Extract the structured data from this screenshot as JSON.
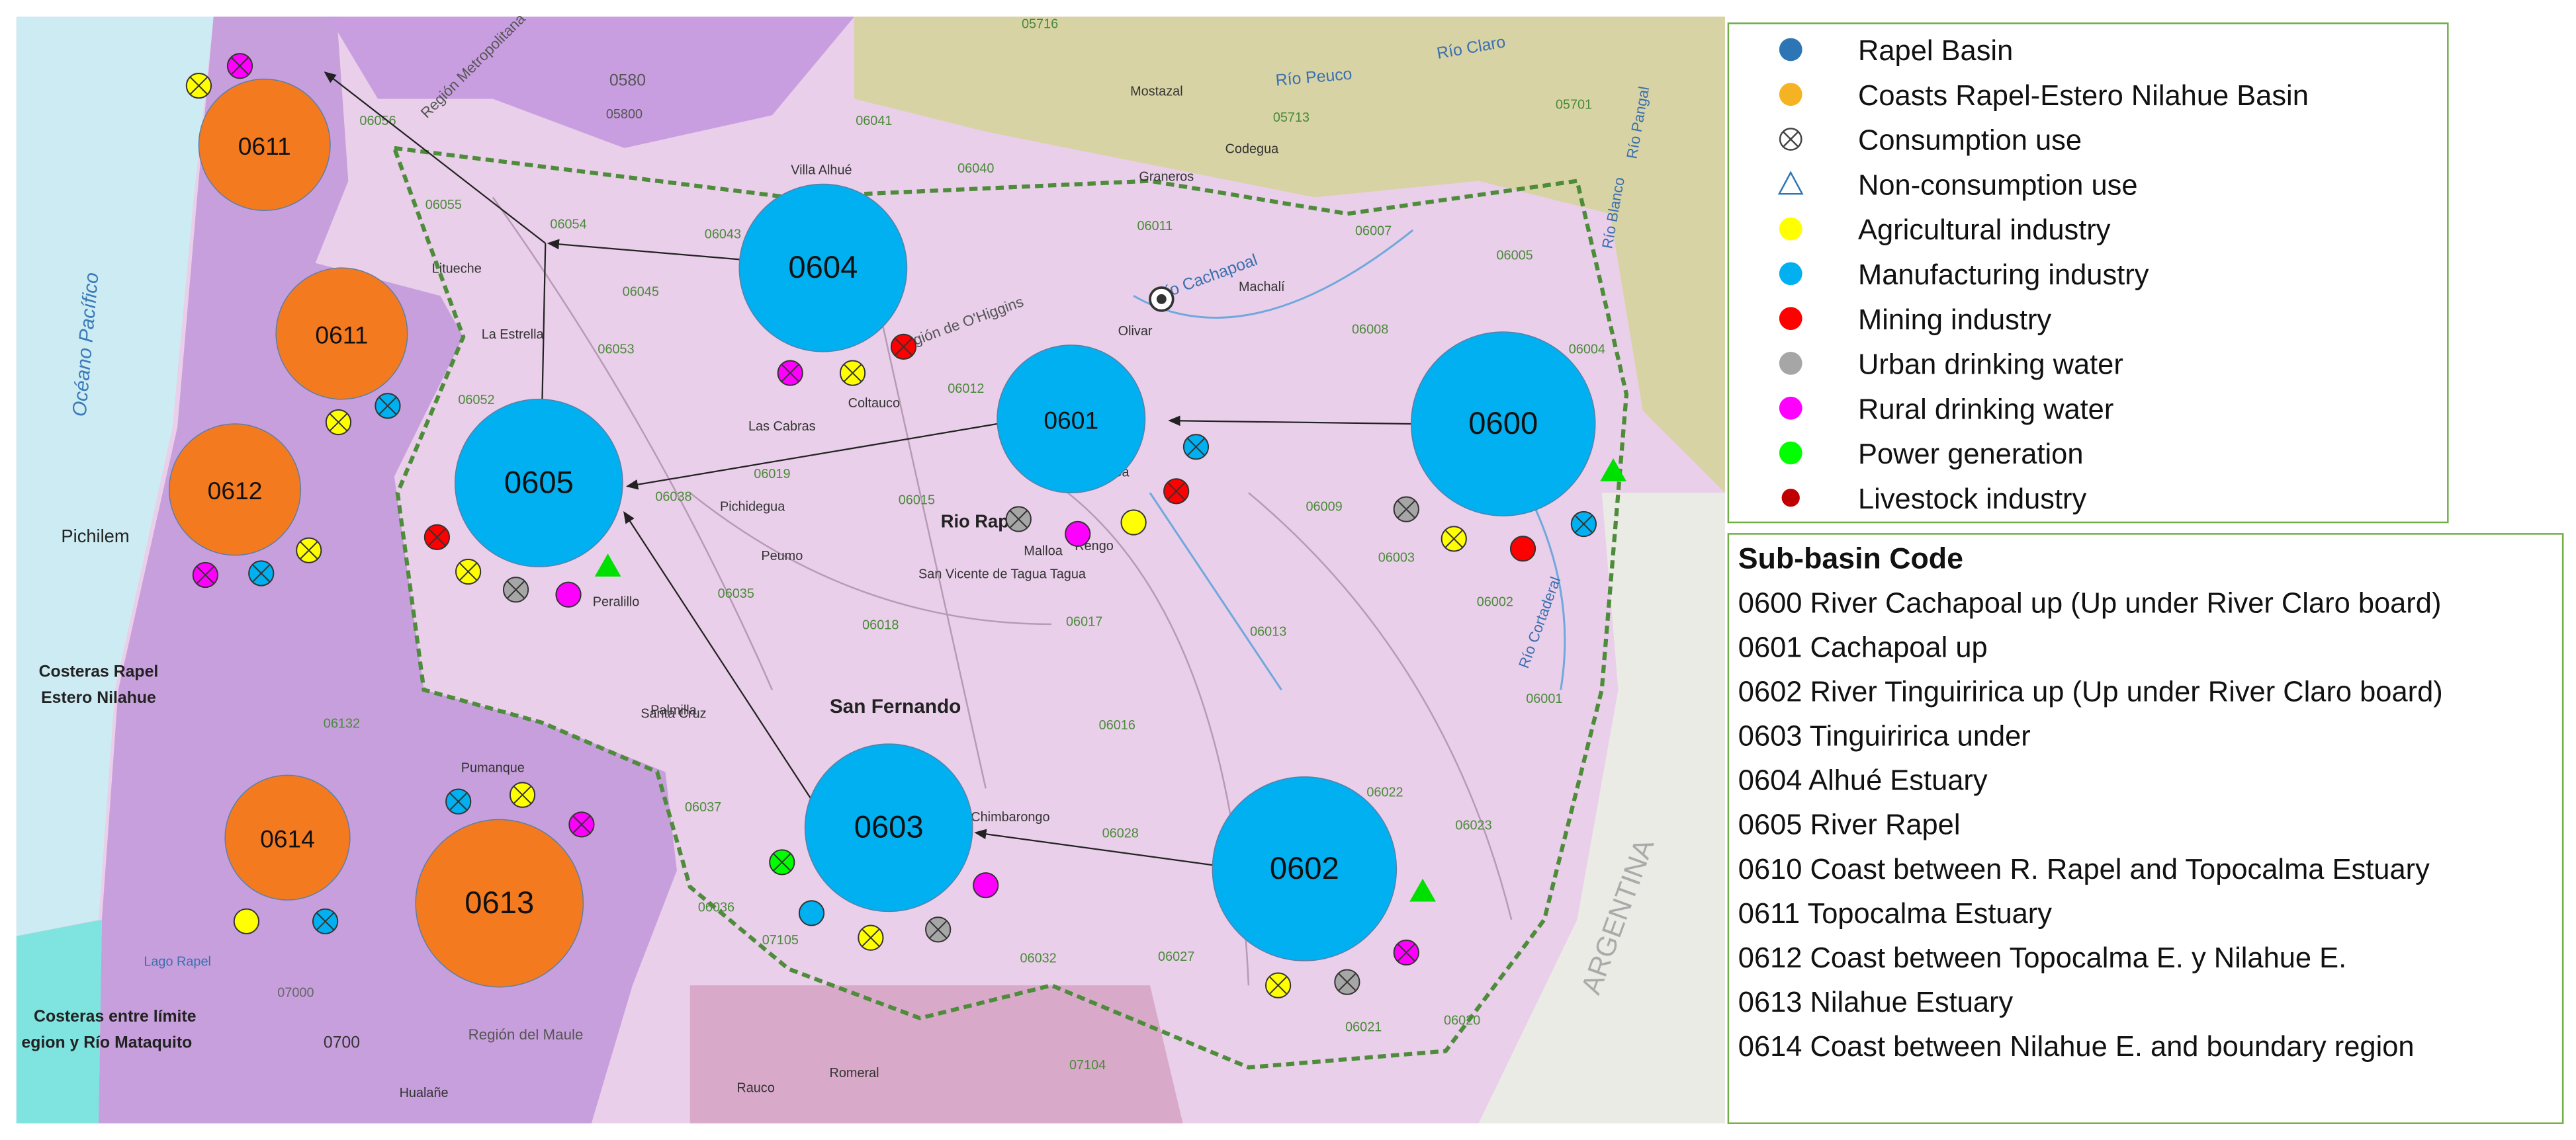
{
  "legend": {
    "items": [
      {
        "label": "Rapel Basin",
        "color": "#2e75b6",
        "symbol": "circle"
      },
      {
        "label": "Coasts Rapel-Estero Nilahue Basin",
        "color": "#f5b323",
        "symbol": "circle"
      },
      {
        "label": "Consumption use",
        "color": "#ffffff",
        "symbol": "cross"
      },
      {
        "label": "Non-consumption use",
        "color": "#2e75b6",
        "symbol": "triangle"
      },
      {
        "label": "Agricultural industry",
        "color": "#ffff00",
        "symbol": "circle"
      },
      {
        "label": "Manufacturing industry",
        "color": "#00b0f0",
        "symbol": "circle"
      },
      {
        "label": "Mining industry",
        "color": "#ff0000",
        "symbol": "circle"
      },
      {
        "label": "Urban drinking water",
        "color": "#a6a6a6",
        "symbol": "circle"
      },
      {
        "label": "Rural drinking water",
        "color": "#ff00ff",
        "symbol": "circle"
      },
      {
        "label": "Power generation",
        "color": "#00ff00",
        "symbol": "circle"
      },
      {
        "label": "Livestock industry",
        "color": "#c00000",
        "symbol": "small"
      }
    ]
  },
  "sub_basin_codes": {
    "title": "Sub-basin Code",
    "entries": [
      "0600 River Cachapoal up (Up under River Claro board)",
      "0601 Cachapoal up",
      "0602 River Tinguiririca up (Up under River Claro board)",
      "0603 Tinguiririca under",
      "0604 Alhué Estuary",
      "0605 River Rapel",
      "0610 Coast between R. Rapel and Topocalma Estuary",
      "0611 Topocalma Estuary",
      "0612 Coast between Topocalma E. y Nilahue E.",
      "0613 Nilahue Estuary",
      "0614 Coast between Nilahue E. and boundary region"
    ]
  },
  "circles": [
    {
      "label": "0611",
      "color": "#f47a20"
    },
    {
      "label": "0611",
      "color": "#f47a20"
    },
    {
      "label": "0612",
      "color": "#f47a20"
    },
    {
      "label": "0604",
      "color": "#00b0f0"
    },
    {
      "label": "0605",
      "color": "#00b0f0"
    },
    {
      "label": "0601",
      "color": "#00b0f0"
    },
    {
      "label": "0600",
      "color": "#00b0f0"
    },
    {
      "label": "0603",
      "color": "#00b0f0"
    },
    {
      "label": "0602",
      "color": "#00b0f0"
    },
    {
      "label": "0614",
      "color": "#f47a20"
    },
    {
      "label": "0613",
      "color": "#f47a20"
    }
  ],
  "map_labels": [
    "Océano Pacífico",
    "Pichilem",
    "Costeras Rapel",
    "Estero Nilahue",
    "Costeras entre límite",
    "egion y Río Mataquito",
    "San Fernando",
    "Rio Rapel",
    "ARGENTINA",
    "Río Cachapoal",
    "Río Claro",
    "Región de O'Higgins",
    "Región Metropolitana",
    "Región del Maule",
    "Lago Rapel",
    "Santa Cruz",
    "Peralillo",
    "Palmilla",
    "Peumo",
    "Coltauco",
    "Las Cabras",
    "Pichidegua",
    "San Vicente de Tagua Tagua",
    "La Estrella",
    "Litueche",
    "Villa Alhué",
    "Mostazal",
    "Graneros",
    "Codegua",
    "Machalí",
    "Olivar",
    "Pumanque",
    "Rauco",
    "Romeral",
    "Hualañe",
    "Río Cortaderal",
    "Río Blanco",
    "Río Pangal",
    "Río Peuco",
    "Chimbarongo",
    "Malloa",
    "Rengo",
    "Requínoa",
    "0580",
    "05800",
    "0700",
    "07000",
    "06055",
    "06056",
    "06054",
    "06053",
    "06052",
    "06045",
    "06043",
    "06041",
    "06040",
    "06012",
    "06011",
    "06019",
    "06015",
    "06018",
    "06017",
    "06035",
    "06038",
    "06037",
    "06132",
    "06016",
    "06028",
    "06032",
    "06027",
    "06036",
    "06009",
    "06013",
    "06003",
    "06002",
    "06005",
    "06007",
    "06008",
    "06004",
    "06022",
    "06023",
    "06021",
    "06020",
    "06001",
    "07105",
    "07104",
    "05713",
    "05701",
    "05716"
  ]
}
